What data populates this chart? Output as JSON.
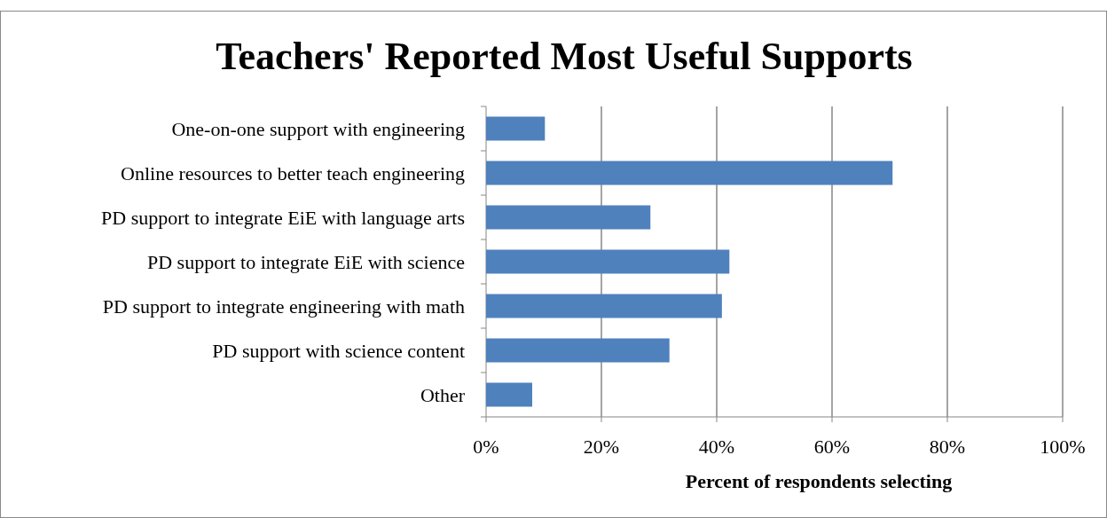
{
  "chart_data": {
    "type": "bar",
    "orientation": "horizontal",
    "title": "Teachers' Reported Most Useful Supports",
    "xlabel": "Percent of respondents selecting",
    "categories": [
      "One-on-one support with engineering",
      "Online resources to better teach engineering",
      "PD support to integrate EiE with language arts",
      "PD support to integrate EiE with science",
      "PD support to integrate engineering with math",
      "PD support with science content",
      "Other"
    ],
    "values": [
      10.2,
      70.5,
      28.5,
      42.2,
      40.9,
      31.8,
      8.0
    ],
    "color": "#4f81bd",
    "xlim": [
      0,
      100
    ],
    "xticks": [
      {
        "value": 0,
        "label": "0%"
      },
      {
        "value": 20,
        "label": "20%"
      },
      {
        "value": 40,
        "label": "40%"
      },
      {
        "value": 60,
        "label": "60%"
      },
      {
        "value": 80,
        "label": "80%"
      },
      {
        "value": 100,
        "label": "100%"
      }
    ],
    "grid": "x"
  }
}
